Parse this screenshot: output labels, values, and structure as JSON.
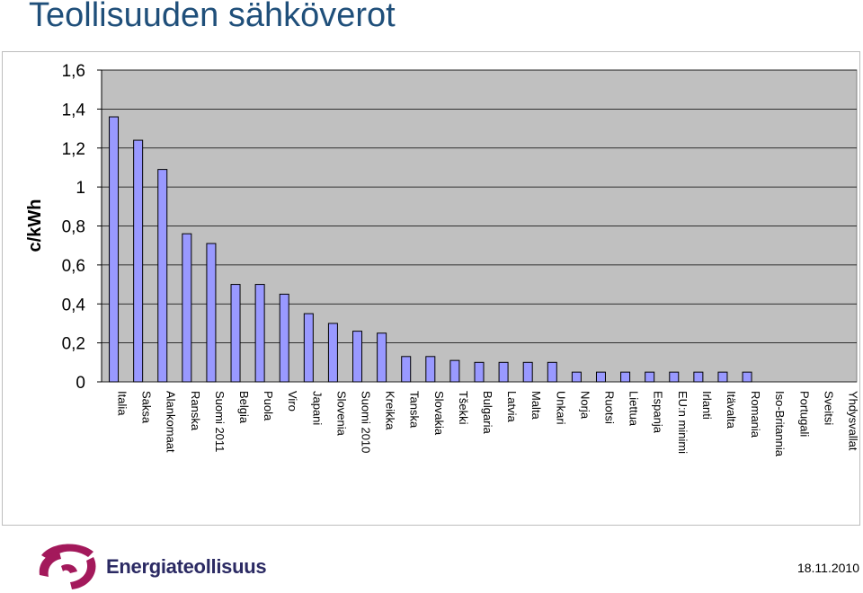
{
  "header": {
    "title": "Teollisuuden sähköverot"
  },
  "footer": {
    "logo_text": "Energiateollisuus",
    "date": "18.11.2010"
  },
  "colors": {
    "bar_fill": "#9999ff",
    "plot_bg": "#c0c0c0",
    "title": "#1f4f7a",
    "logo_accent": "#a3195b",
    "logo_text": "#2b2a63"
  },
  "chart_data": {
    "type": "bar",
    "title": "",
    "ylabel": "c/kWh",
    "xlabel": "",
    "ylim": [
      0,
      1.6
    ],
    "yticks": [
      0,
      0.2,
      0.4,
      0.6,
      0.8,
      1,
      1.2,
      1.4,
      1.6
    ],
    "ytick_labels": [
      "0",
      "0,2",
      "0,4",
      "0,6",
      "0,8",
      "1",
      "1,2",
      "1,4",
      "1,6"
    ],
    "grid": true,
    "categories": [
      "Italia",
      "Saksa",
      "Alankomaat",
      "Ranska",
      "Suomi 2011",
      "Belgia",
      "Puola",
      "Viro",
      "Japani",
      "Slovenia",
      "Suomi 2010",
      "Kreikka",
      "Tanska",
      "Slovakia",
      "Tšekki",
      "Bulgaria",
      "Latvia",
      "Malta",
      "Unkari",
      "Norja",
      "Ruotsi",
      "Liettua",
      "Espanja",
      "EU:n minimi",
      "Irlanti",
      "Itävalta",
      "Romania",
      "Iso-Britannia",
      "Portugali",
      "Sveitsi",
      "Yhdysvallat"
    ],
    "values": [
      1.36,
      1.24,
      1.09,
      0.76,
      0.71,
      0.5,
      0.5,
      0.45,
      0.35,
      0.3,
      0.26,
      0.25,
      0.13,
      0.13,
      0.11,
      0.1,
      0.1,
      0.1,
      0.1,
      0.05,
      0.05,
      0.05,
      0.05,
      0.05,
      0.05,
      0.05,
      0.05,
      0,
      0,
      0,
      0
    ]
  }
}
